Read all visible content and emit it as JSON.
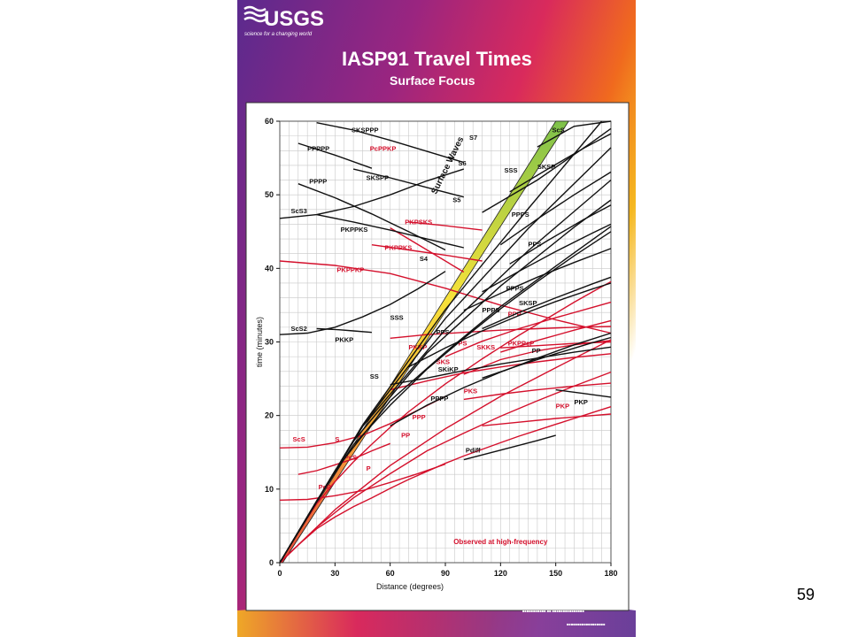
{
  "slide": {
    "number": "59"
  },
  "poster": {
    "logo": "USGS",
    "logo_tagline": "science for a changing world",
    "title": "IASP91 Travel Times",
    "subtitle": "Surface Focus",
    "colors": {
      "yellow": "#f5d21e",
      "orange": "#f06a1e",
      "magenta": "#c81e78",
      "purple": "#6a2a8c"
    }
  },
  "chart_data": {
    "type": "line",
    "title": "",
    "xlabel": "Distance (degrees)",
    "ylabel": "time (minutes)",
    "xlim": [
      0,
      180
    ],
    "ylim": [
      0,
      60
    ],
    "xticks": [
      0,
      30,
      60,
      90,
      120,
      150,
      180
    ],
    "yticks": [
      0,
      10,
      20,
      30,
      40,
      50,
      60
    ],
    "grid": true,
    "band_label": "Surface Waves",
    "note": "Observed at high-frequency",
    "colors": {
      "long_period": "#111111",
      "high_frequency": "#d4102c"
    },
    "series": [
      {
        "name": "P",
        "group": "high_frequency",
        "label_at": [
          47,
          12.5
        ],
        "x": [
          0,
          10,
          20,
          30,
          40,
          50,
          60,
          70,
          80,
          90,
          100,
          110,
          120,
          130,
          140,
          150,
          160,
          170,
          180
        ],
        "y": [
          0,
          2.4,
          4.6,
          6.2,
          7.6,
          8.8,
          10.1,
          11.3,
          12.4,
          13.5,
          14.5,
          15.4,
          16.3,
          17.2,
          18,
          18.8,
          19.6,
          20.4,
          21.2
        ]
      },
      {
        "name": "PcP",
        "group": "high_frequency",
        "label_at": [
          21,
          10
        ],
        "x": [
          0,
          15,
          30,
          45,
          60,
          75,
          90
        ],
        "y": [
          8.5,
          8.6,
          9.1,
          9.8,
          10.9,
          12.1,
          13.4
        ]
      },
      {
        "name": "ScS",
        "group": "high_frequency",
        "label_at": [
          7,
          16.5
        ],
        "x": [
          0,
          15,
          30,
          45,
          60,
          75,
          90
        ],
        "y": [
          15.6,
          15.7,
          16.3,
          17.3,
          18.9,
          20.7,
          22.6
        ]
      },
      {
        "name": "PcS",
        "group": "high_frequency",
        "label_at": [
          35,
          14
        ],
        "x": [
          10,
          20,
          30,
          40,
          50,
          60
        ],
        "y": [
          12,
          12.5,
          13.3,
          14.1,
          15.2,
          16.2
        ]
      },
      {
        "name": "S",
        "group": "high_frequency",
        "label_at": [
          30,
          16.5
        ],
        "x": [
          0,
          10,
          20,
          30,
          40,
          50,
          60,
          70,
          80,
          90,
          100,
          110,
          120,
          130,
          140,
          150,
          160,
          170,
          180
        ],
        "y": [
          0,
          4.2,
          8,
          11,
          13.7,
          16.1,
          18.4,
          20.5,
          22.4,
          24.3,
          26,
          27.7,
          29.3,
          30.9,
          32.4,
          33.9,
          35.4,
          36.8,
          38.2
        ]
      },
      {
        "name": "PP",
        "group": "high_frequency",
        "label_at": [
          66,
          17
        ],
        "x": [
          0,
          20,
          40,
          60,
          80,
          100,
          120,
          140,
          160,
          180
        ],
        "y": [
          0,
          4.8,
          8.8,
          12.1,
          15.2,
          17.6,
          19.9,
          22,
          24,
          25.9
        ]
      },
      {
        "name": "PPP",
        "group": "high_frequency",
        "label_at": [
          72,
          19.5
        ],
        "x": [
          0,
          30,
          60,
          90,
          120,
          150,
          180
        ],
        "y": [
          0,
          7.2,
          13.2,
          18.2,
          22.6,
          26.5,
          30.3
        ]
      },
      {
        "name": "SKS",
        "group": "high_frequency",
        "label_at": [
          85,
          27
        ],
        "x": [
          60,
          80,
          100,
          120,
          140,
          160,
          180
        ],
        "y": [
          23.5,
          24.7,
          25.8,
          26.6,
          27.3,
          27.9,
          28.4
        ]
      },
      {
        "name": "PKS",
        "group": "high_frequency",
        "label_at": [
          100,
          23
        ],
        "x": [
          100,
          120,
          140,
          160,
          180
        ],
        "y": [
          22.2,
          22.9,
          23.5,
          24,
          24.4
        ]
      },
      {
        "name": "PKP",
        "group": "high_frequency",
        "label_at": [
          150,
          21
        ],
        "x": [
          110,
          130,
          150,
          170,
          180
        ],
        "y": [
          18.6,
          19.1,
          19.6,
          20,
          20.2
        ]
      },
      {
        "name": "PKKP",
        "group": "high_frequency",
        "label_at": [
          70,
          29
        ],
        "x": [
          60,
          80,
          100,
          120,
          140,
          160,
          180
        ],
        "y": [
          30.5,
          31,
          31.3,
          31.6,
          31.8,
          32,
          32.1
        ]
      },
      {
        "name": "PS",
        "group": "high_frequency",
        "label_at": [
          97,
          29.5
        ],
        "x": [
          90,
          110,
          130,
          150,
          170,
          180
        ],
        "y": [
          28,
          30.1,
          31.8,
          33.3,
          34.7,
          35.4
        ]
      },
      {
        "name": "SKKS",
        "group": "high_frequency",
        "label_at": [
          107,
          29
        ],
        "x": [
          100,
          120,
          140,
          160,
          180
        ],
        "y": [
          25.6,
          27.6,
          28.8,
          29.6,
          30.2
        ]
      },
      {
        "name": "PPP",
        "group": "high_frequency",
        "label_at": [
          124,
          33.5
        ],
        "x": [
          120,
          140,
          160,
          180
        ],
        "y": [
          28.6,
          30.2,
          31.6,
          32.9
        ]
      },
      {
        "name": "PKPPcP",
        "group": "high_frequency",
        "label_at": [
          124,
          29.5
        ],
        "x": [
          120,
          140,
          160,
          180
        ],
        "y": [
          29.2,
          29.5,
          29.8,
          30
        ]
      },
      {
        "name": "PKPPKP",
        "group": "high_frequency",
        "label_at": [
          31,
          39.5
        ],
        "x": [
          0,
          30,
          60,
          90,
          120,
          150,
          180
        ],
        "y": [
          41,
          40.4,
          39.3,
          37.3,
          35,
          33,
          31.2
        ]
      },
      {
        "name": "PKPPKS",
        "group": "high_frequency",
        "label_at": [
          57,
          42.5
        ],
        "x": [
          50,
          70,
          90,
          110
        ],
        "y": [
          43.2,
          42.5,
          41.8,
          41
        ]
      },
      {
        "name": "PKPSKS",
        "group": "high_frequency",
        "label_at": [
          68,
          46
        ],
        "x": [
          70,
          90,
          110
        ],
        "y": [
          46.3,
          45.8,
          45.2
        ]
      },
      {
        "name": "PcPPKP",
        "group": "high_frequency",
        "label_at": [
          49,
          56
        ],
        "x": [
          60,
          80,
          100
        ],
        "y": [
          45.5,
          42.5,
          39.5
        ]
      },
      {
        "name": "ScS2",
        "group": "long_period",
        "label_at": [
          6,
          31.5
        ],
        "x": [
          0,
          15,
          30,
          45,
          60,
          75,
          90
        ],
        "y": [
          31,
          31.2,
          32,
          33.4,
          35.1,
          37.2,
          39.6
        ]
      },
      {
        "name": "ScS3",
        "group": "long_period",
        "label_at": [
          6,
          47.5
        ],
        "x": [
          0,
          20,
          40,
          60,
          80,
          100
        ],
        "y": [
          46.8,
          47.3,
          48.4,
          50,
          51.9,
          53.5
        ]
      },
      {
        "name": "PKKP",
        "group": "long_period",
        "label_at": [
          30,
          30
        ],
        "x": [
          20,
          30,
          40,
          50
        ],
        "y": [
          31.8,
          31.7,
          31.5,
          31.3
        ]
      },
      {
        "name": "PKPPKS",
        "group": "long_period",
        "label_at": [
          33,
          45
        ],
        "x": [
          20,
          40,
          60,
          80,
          100
        ],
        "y": [
          47.3,
          46.3,
          45.2,
          44,
          42.8
        ]
      },
      {
        "name": "PPPP",
        "group": "long_period",
        "label_at": [
          16,
          51.5
        ],
        "x": [
          10,
          30,
          50,
          70,
          90
        ],
        "y": [
          51.5,
          49.6,
          47.4,
          45,
          42.5
        ]
      },
      {
        "name": "PPPPP",
        "group": "long_period",
        "label_at": [
          15,
          56
        ],
        "x": [
          10,
          30,
          50
        ],
        "y": [
          57,
          55.4,
          53.6
        ]
      },
      {
        "name": "SKSPP",
        "group": "long_period",
        "label_at": [
          47,
          52
        ],
        "x": [
          40,
          60,
          80,
          100
        ],
        "y": [
          53.5,
          52.3,
          51,
          49.7
        ]
      },
      {
        "name": "SKSPPP",
        "group": "long_period",
        "label_at": [
          39,
          58.5
        ],
        "x": [
          20,
          40,
          60,
          80,
          100
        ],
        "y": [
          59.8,
          58.8,
          57.4,
          55.9,
          54.4
        ]
      },
      {
        "name": "SS",
        "group": "long_period",
        "label_at": [
          49,
          25
        ],
        "x": [
          0,
          20,
          40,
          60,
          80,
          100,
          120,
          140,
          160,
          180
        ],
        "y": [
          0,
          8.4,
          16,
          21.4,
          26.3,
          30.5,
          34.5,
          38.2,
          41.7,
          45
        ]
      },
      {
        "name": "SSS",
        "group": "long_period",
        "label_at": [
          60,
          33
        ],
        "x": [
          0,
          30,
          60,
          90,
          120,
          150,
          180
        ],
        "y": [
          0,
          12.5,
          22,
          28.6,
          34.8,
          40.3,
          45.7
        ]
      },
      {
        "name": "S4",
        "group": "long_period",
        "label_at": [
          76,
          41
        ],
        "x": [
          0,
          40,
          80,
          120,
          160,
          180
        ],
        "y": [
          0,
          16.5,
          28.5,
          37.6,
          45.6,
          49.3
        ]
      },
      {
        "name": "S5",
        "group": "long_period",
        "label_at": [
          94,
          49
        ],
        "x": [
          0,
          45,
          90,
          135,
          180
        ],
        "y": [
          0,
          18.5,
          31.7,
          42.4,
          52
        ]
      },
      {
        "name": "S6",
        "group": "long_period",
        "label_at": [
          97,
          54
        ],
        "x": [
          0,
          45,
          90,
          135,
          180
        ],
        "y": [
          0,
          18.6,
          33.2,
          45.4,
          56.4
        ]
      },
      {
        "name": "S7",
        "group": "long_period",
        "label_at": [
          103,
          57.5
        ],
        "x": [
          0,
          45,
          90,
          135,
          175
        ],
        "y": [
          0,
          18.7,
          34.4,
          48.1,
          60
        ]
      },
      {
        "name": "SSS",
        "group": "long_period",
        "label_at": [
          122,
          53
        ],
        "x": [
          110,
          140,
          170,
          180
        ],
        "y": [
          47.6,
          52,
          57.2,
          59
        ]
      },
      {
        "name": "SKSP",
        "group": "long_period",
        "label_at": [
          130,
          35
        ],
        "x": [
          110,
          130,
          150,
          170,
          180
        ],
        "y": [
          31.8,
          34,
          36,
          37.9,
          38.8
        ]
      },
      {
        "name": "PPPS",
        "group": "long_period",
        "label_at": [
          110,
          34
        ],
        "x": [
          100,
          120,
          140,
          160,
          180
        ],
        "y": [
          34.3,
          36.6,
          38.8,
          40.8,
          42.7
        ]
      },
      {
        "name": "PPPS",
        "group": "long_period",
        "label_at": [
          123,
          37
        ],
        "x": [
          110,
          130,
          150,
          170,
          180
        ],
        "y": [
          36.8,
          39.6,
          42.3,
          44.8,
          46
        ]
      },
      {
        "name": "PPS",
        "group": "long_period",
        "label_at": [
          85,
          31
        ],
        "x": [
          70,
          90,
          110,
          130,
          150,
          170,
          180
        ],
        "y": [
          26.6,
          29.2,
          31.5,
          33.6,
          35.5,
          37.2,
          38
        ]
      },
      {
        "name": "PPPS",
        "group": "long_period",
        "label_at": [
          126,
          47
        ],
        "x": [
          120,
          140,
          160,
          180
        ],
        "y": [
          43.2,
          46.7,
          50,
          53.1
        ]
      },
      {
        "name": "PPS",
        "group": "long_period",
        "label_at": [
          135,
          43
        ],
        "x": [
          125,
          145,
          165,
          180
        ],
        "y": [
          40.6,
          43.7,
          46.6,
          48.6
        ]
      },
      {
        "name": "SKSP",
        "group": "long_period",
        "label_at": [
          140,
          53.5
        ],
        "x": [
          125,
          145,
          165,
          180
        ],
        "y": [
          50.4,
          53.4,
          56.3,
          58.3
        ]
      },
      {
        "name": "ScS",
        "group": "long_period",
        "label_at": [
          148,
          58.5
        ],
        "x": [
          140,
          160,
          180
        ],
        "y": [
          56.5,
          59.3,
          62
        ]
      },
      {
        "name": "SKiKP",
        "group": "long_period",
        "label_at": [
          86,
          26
        ],
        "x": [
          60,
          80,
          100,
          120,
          140,
          160,
          180
        ],
        "y": [
          24.2,
          25.1,
          26.1,
          27,
          27.8,
          28.6,
          29.3
        ]
      },
      {
        "name": "PPPP",
        "group": "long_period",
        "label_at": [
          82,
          22
        ],
        "x": [
          60,
          80,
          100,
          120,
          140,
          160,
          180
        ],
        "y": [
          18.6,
          21.4,
          23.8,
          25.9,
          27.8,
          29.6,
          31.2
        ]
      },
      {
        "name": "PP",
        "group": "long_period",
        "label_at": [
          137,
          28.5
        ],
        "x": [
          110,
          130,
          150,
          170,
          180
        ],
        "y": [
          25.1,
          26.8,
          28.4,
          29.9,
          30.6
        ]
      },
      {
        "name": "Pdiff",
        "group": "long_period",
        "label_at": [
          101,
          15
        ],
        "x": [
          100,
          120,
          140,
          150
        ],
        "y": [
          14,
          15.3,
          16.6,
          17.3
        ]
      },
      {
        "name": "PKP",
        "group": "long_period",
        "label_at": [
          160,
          21.5
        ],
        "x": [
          150,
          165,
          180
        ],
        "y": [
          23.5,
          23,
          22.5
        ]
      }
    ]
  }
}
